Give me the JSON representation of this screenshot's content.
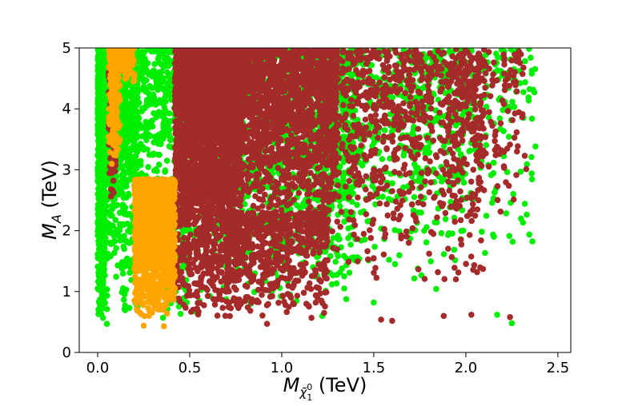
{
  "chart_data": {
    "type": "scatter",
    "title": "",
    "xlabel": {
      "main": "M",
      "sub": "χ̃",
      "sup": "0",
      "subsub": "1",
      "unit": " (TeV)"
    },
    "ylabel": {
      "main": "M",
      "sub": "A",
      "unit": " (TeV)"
    },
    "xlim": [
      -0.1,
      2.57
    ],
    "ylim": [
      0,
      5
    ],
    "xticks": [
      0.0,
      0.5,
      1.0,
      1.5,
      2.0,
      2.5
    ],
    "xtick_labels": [
      "0.0",
      "0.5",
      "1.0",
      "1.5",
      "2.0",
      "2.5"
    ],
    "yticks": [
      0,
      1,
      2,
      3,
      4,
      5
    ],
    "ytick_labels": [
      "0",
      "1",
      "2",
      "3",
      "4",
      "5"
    ],
    "grid": false,
    "legend": "none",
    "series": [
      {
        "color": "#00ee00",
        "regions": [
          {
            "x": [
              0.0,
              0.04
            ],
            "y": [
              0.45,
              5.0
            ],
            "n": 900
          },
          {
            "x": [
              0.04,
              0.22
            ],
            "y": [
              0.45,
              5.0
            ],
            "n": 700
          },
          {
            "x": [
              0.12,
              0.48
            ],
            "y": [
              2.4,
              5.0
            ],
            "n": 500
          },
          {
            "x": [
              0.35,
              0.5
            ],
            "y": [
              0.45,
              2.6
            ],
            "n": 150
          },
          {
            "x": [
              0.45,
              1.4
            ],
            "y": [
              0.55,
              5.0
            ],
            "n": 1400
          },
          {
            "x": [
              1.0,
              2.0
            ],
            "y": [
              1.0,
              5.0
            ],
            "n": 700
          },
          {
            "x": [
              1.7,
              2.38
            ],
            "y": [
              1.4,
              5.0
            ],
            "n": 260
          }
        ],
        "points": [
          {
            "x": 2.25,
            "y": 0.48
          },
          {
            "x": 2.17,
            "y": 0.62
          },
          {
            "x": 1.5,
            "y": 0.82
          },
          {
            "x": 1.22,
            "y": 0.6
          },
          {
            "x": 0.05,
            "y": 0.47
          }
        ]
      },
      {
        "color": "#a52a2a",
        "regions": [
          {
            "x": [
              0.06,
              0.1
            ],
            "y": [
              2.3,
              4.7
            ],
            "n": 120
          },
          {
            "x": [
              0.42,
              0.78
            ],
            "y": [
              0.48,
              5.0
            ],
            "n": 2600
          },
          {
            "x": [
              0.6,
              1.3
            ],
            "y": [
              2.0,
              5.0
            ],
            "n": 2000
          },
          {
            "x": [
              0.7,
              1.25
            ],
            "y": [
              0.55,
              2.3
            ],
            "n": 600
          },
          {
            "x": [
              1.2,
              2.1
            ],
            "y": [
              1.1,
              5.0
            ],
            "n": 850
          },
          {
            "x": [
              1.9,
              2.33
            ],
            "y": [
              2.0,
              5.0
            ],
            "n": 180
          }
        ],
        "points": [
          {
            "x": 0.92,
            "y": 0.47
          },
          {
            "x": 1.23,
            "y": 0.65
          },
          {
            "x": 1.6,
            "y": 0.52
          },
          {
            "x": 1.54,
            "y": 0.54
          },
          {
            "x": 1.88,
            "y": 0.6
          },
          {
            "x": 2.03,
            "y": 0.62
          },
          {
            "x": 2.24,
            "y": 0.58
          },
          {
            "x": 1.05,
            "y": 0.9
          },
          {
            "x": 2.32,
            "y": 3.23
          }
        ]
      },
      {
        "color": "#ffa500",
        "regions": [
          {
            "x": [
              0.06,
              0.12
            ],
            "y": [
              3.0,
              5.0
            ],
            "n": 220
          },
          {
            "x": [
              0.08,
              0.2
            ],
            "y": [
              4.35,
              5.0
            ],
            "n": 90
          },
          {
            "x": [
              0.2,
              0.42
            ],
            "y": [
              0.5,
              2.85
            ],
            "n": 1400
          }
        ],
        "points": [
          {
            "x": 0.36,
            "y": 0.43
          },
          {
            "x": 0.25,
            "y": 0.44
          },
          {
            "x": 0.3,
            "y": 2.8
          }
        ]
      }
    ]
  }
}
